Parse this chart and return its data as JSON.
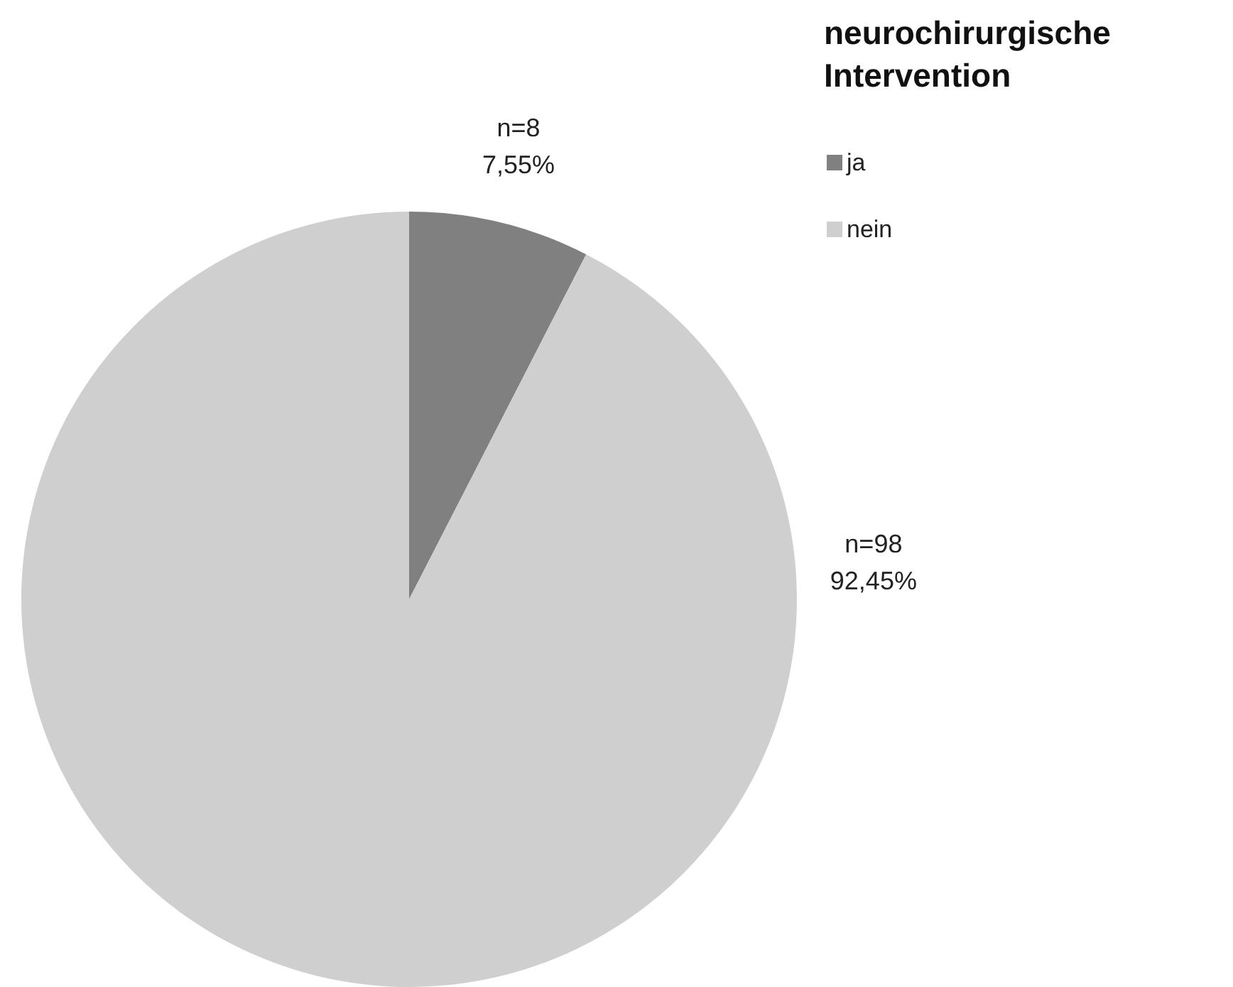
{
  "chart_data": {
    "type": "pie",
    "legend_title": "neurochirurgische Intervention",
    "categories": [
      "ja",
      "nein"
    ],
    "values": [
      8,
      98
    ],
    "colors": [
      "#808080",
      "#d0cfd0"
    ],
    "value_labels": [
      "n=8\n7,55%",
      "n=98\n92,45%"
    ],
    "legend": "top right"
  }
}
